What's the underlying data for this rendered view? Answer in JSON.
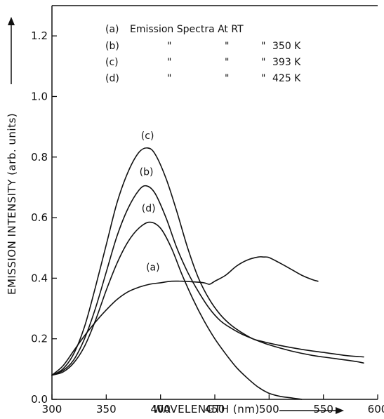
{
  "chart_data": {
    "type": "line",
    "xlabel": "WAVELENGTH (nm)",
    "ylabel": "EMISSION INTENSITY (arb. units)",
    "xlim": [
      300,
      600
    ],
    "ylim": [
      0,
      1.3
    ],
    "x_ticks": [
      300,
      350,
      400,
      450,
      500,
      550,
      600
    ],
    "y_ticks": [
      0.0,
      0.2,
      0.4,
      0.6,
      0.8,
      1.0,
      1.2
    ],
    "x_tick_labels": [
      "300",
      "350",
      "400",
      "450",
      "500",
      "550",
      "600"
    ],
    "y_tick_labels": [
      "0.0",
      "0.2",
      "0.4",
      "0.6",
      "0.8",
      "1.0",
      "1.2"
    ],
    "grid": false,
    "legend_position": "top",
    "legend": [
      {
        "tag": "(a)",
        "text": "Emission  Spectra  At  RT"
      },
      {
        "tag": "(b)",
        "ditto": "\"",
        "text": "350 K"
      },
      {
        "tag": "(c)",
        "ditto": "\"",
        "text": "393 K"
      },
      {
        "tag": "(d)",
        "ditto": "\"",
        "text": "425 K"
      }
    ],
    "series": [
      {
        "name": "(a)",
        "label_at": [
          393,
          0.425
        ],
        "points": [
          [
            300,
            0.08
          ],
          [
            310,
            0.11
          ],
          [
            320,
            0.16
          ],
          [
            330,
            0.21
          ],
          [
            340,
            0.255
          ],
          [
            350,
            0.295
          ],
          [
            360,
            0.33
          ],
          [
            370,
            0.355
          ],
          [
            380,
            0.37
          ],
          [
            390,
            0.38
          ],
          [
            400,
            0.385
          ],
          [
            410,
            0.39
          ],
          [
            420,
            0.39
          ],
          [
            430,
            0.388
          ],
          [
            440,
            0.385
          ],
          [
            445,
            0.38
          ],
          [
            450,
            0.39
          ],
          [
            460,
            0.41
          ],
          [
            470,
            0.44
          ],
          [
            480,
            0.46
          ],
          [
            490,
            0.47
          ],
          [
            495,
            0.47
          ],
          [
            500,
            0.468
          ],
          [
            510,
            0.45
          ],
          [
            520,
            0.43
          ],
          [
            530,
            0.41
          ],
          [
            540,
            0.395
          ],
          [
            545,
            0.39
          ]
        ]
      },
      {
        "name": "(b)",
        "label_at": [
          387,
          0.74
        ],
        "points": [
          [
            300,
            0.08
          ],
          [
            310,
            0.095
          ],
          [
            320,
            0.13
          ],
          [
            330,
            0.2
          ],
          [
            340,
            0.3
          ],
          [
            350,
            0.42
          ],
          [
            360,
            0.54
          ],
          [
            370,
            0.63
          ],
          [
            380,
            0.69
          ],
          [
            387,
            0.705
          ],
          [
            395,
            0.68
          ],
          [
            405,
            0.6
          ],
          [
            415,
            0.5
          ],
          [
            425,
            0.42
          ],
          [
            435,
            0.355
          ],
          [
            445,
            0.3
          ],
          [
            455,
            0.26
          ],
          [
            465,
            0.235
          ],
          [
            475,
            0.215
          ],
          [
            485,
            0.2
          ],
          [
            500,
            0.18
          ],
          [
            520,
            0.16
          ],
          [
            540,
            0.145
          ],
          [
            560,
            0.135
          ],
          [
            580,
            0.125
          ],
          [
            587,
            0.12
          ]
        ]
      },
      {
        "name": "(c)",
        "label_at": [
          388,
          0.86
        ],
        "points": [
          [
            300,
            0.08
          ],
          [
            310,
            0.1
          ],
          [
            320,
            0.15
          ],
          [
            330,
            0.24
          ],
          [
            340,
            0.37
          ],
          [
            350,
            0.51
          ],
          [
            360,
            0.65
          ],
          [
            370,
            0.75
          ],
          [
            380,
            0.815
          ],
          [
            388,
            0.83
          ],
          [
            395,
            0.81
          ],
          [
            405,
            0.73
          ],
          [
            415,
            0.62
          ],
          [
            425,
            0.5
          ],
          [
            435,
            0.4
          ],
          [
            445,
            0.33
          ],
          [
            455,
            0.28
          ],
          [
            465,
            0.245
          ],
          [
            475,
            0.22
          ],
          [
            485,
            0.2
          ],
          [
            495,
            0.19
          ],
          [
            510,
            0.178
          ],
          [
            530,
            0.165
          ],
          [
            550,
            0.155
          ],
          [
            570,
            0.145
          ],
          [
            587,
            0.14
          ]
        ]
      },
      {
        "name": "(d)",
        "label_at": [
          389,
          0.62
        ],
        "points": [
          [
            300,
            0.08
          ],
          [
            310,
            0.09
          ],
          [
            320,
            0.12
          ],
          [
            330,
            0.175
          ],
          [
            340,
            0.26
          ],
          [
            350,
            0.36
          ],
          [
            360,
            0.45
          ],
          [
            370,
            0.52
          ],
          [
            380,
            0.565
          ],
          [
            390,
            0.585
          ],
          [
            400,
            0.565
          ],
          [
            410,
            0.5
          ],
          [
            420,
            0.41
          ],
          [
            430,
            0.33
          ],
          [
            440,
            0.26
          ],
          [
            450,
            0.2
          ],
          [
            460,
            0.15
          ],
          [
            470,
            0.105
          ],
          [
            480,
            0.07
          ],
          [
            490,
            0.04
          ],
          [
            500,
            0.02
          ],
          [
            510,
            0.01
          ],
          [
            520,
            0.005
          ],
          [
            530,
            0.0
          ]
        ]
      }
    ]
  }
}
